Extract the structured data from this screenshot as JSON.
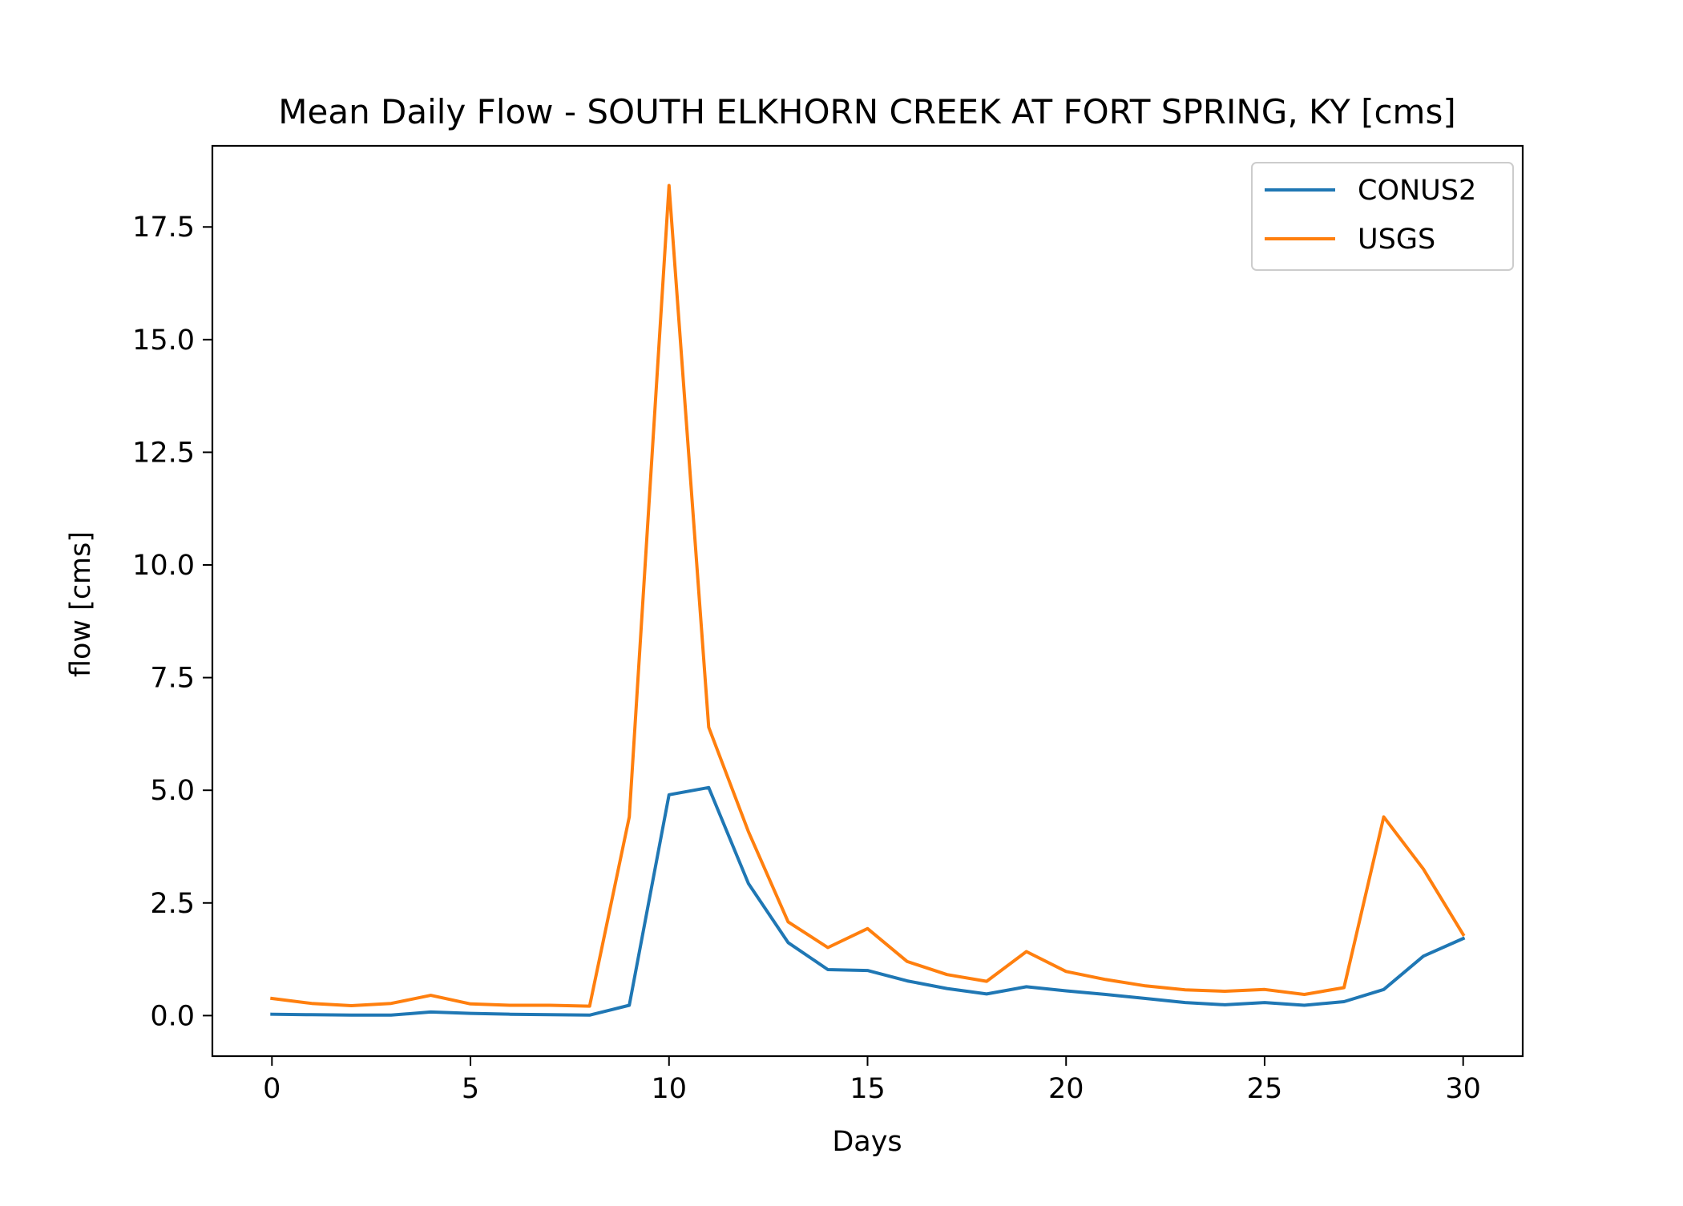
{
  "chart_data": {
    "type": "line",
    "title": "Mean Daily Flow - SOUTH ELKHORN CREEK AT FORT SPRING, KY [cms]",
    "xlabel": "Days",
    "ylabel": "flow [cms]",
    "xlim": [
      -1.5,
      31.5
    ],
    "ylim": [
      -0.9,
      19.3
    ],
    "xticks": [
      0,
      5,
      10,
      15,
      20,
      25,
      30
    ],
    "xtick_labels": [
      "0",
      "5",
      "10",
      "15",
      "20",
      "25",
      "30"
    ],
    "yticks": [
      0.0,
      2.5,
      5.0,
      7.5,
      10.0,
      12.5,
      15.0,
      17.5
    ],
    "ytick_labels": [
      "0.0",
      "2.5",
      "5.0",
      "7.5",
      "10.0",
      "12.5",
      "15.0",
      "17.5"
    ],
    "grid": false,
    "legend_position": "top-right",
    "x": [
      0,
      1,
      2,
      3,
      4,
      5,
      6,
      7,
      8,
      9,
      10,
      11,
      12,
      13,
      14,
      15,
      16,
      17,
      18,
      19,
      20,
      21,
      22,
      23,
      24,
      25,
      26,
      27,
      28,
      29,
      30
    ],
    "series": [
      {
        "name": "CONUS2",
        "color": "#1f77b4",
        "values": [
          0.03,
          0.02,
          0.01,
          0.01,
          0.08,
          0.05,
          0.03,
          0.02,
          0.01,
          0.23,
          4.9,
          5.06,
          2.93,
          1.62,
          1.02,
          1.0,
          0.77,
          0.6,
          0.48,
          0.64,
          0.55,
          0.47,
          0.38,
          0.29,
          0.24,
          0.29,
          0.23,
          0.31,
          0.58,
          1.32,
          1.71
        ]
      },
      {
        "name": "USGS",
        "color": "#ff7f0e",
        "values": [
          0.38,
          0.27,
          0.22,
          0.27,
          0.45,
          0.26,
          0.23,
          0.23,
          0.21,
          4.41,
          18.42,
          6.4,
          4.08,
          2.08,
          1.51,
          1.93,
          1.2,
          0.91,
          0.76,
          1.42,
          0.98,
          0.8,
          0.66,
          0.57,
          0.54,
          0.58,
          0.47,
          0.62,
          4.41,
          3.25,
          1.8
        ]
      }
    ]
  }
}
